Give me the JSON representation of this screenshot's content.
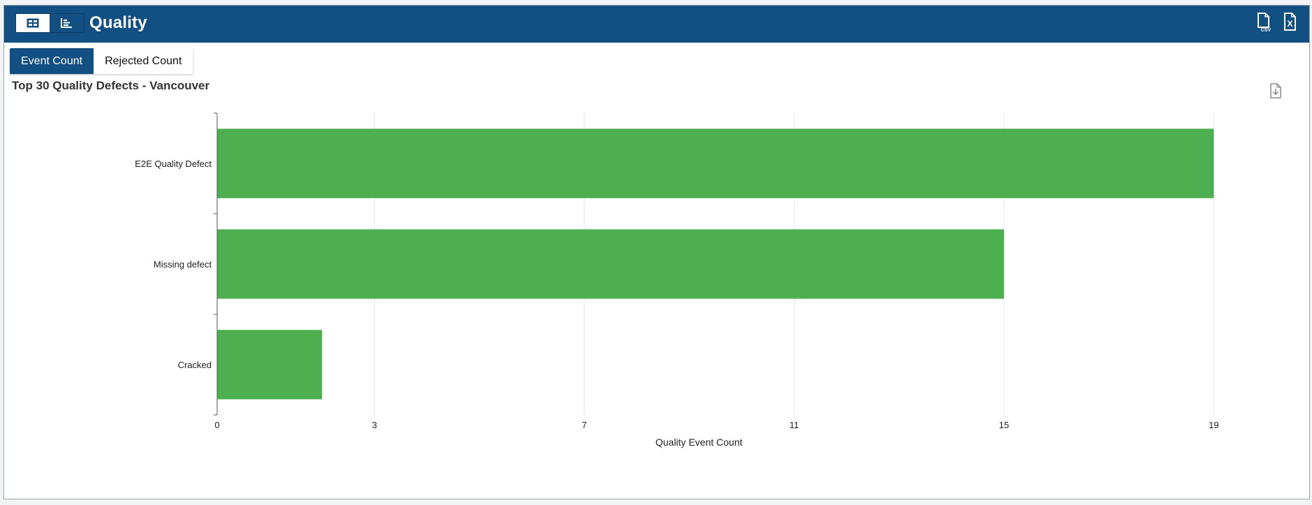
{
  "header": {
    "title": "Quality",
    "view_toggle": [
      {
        "name": "table-view",
        "icon": "table-icon",
        "active": true
      },
      {
        "name": "chart-view",
        "icon": "bar-chart-icon",
        "active": false
      }
    ],
    "actions": [
      {
        "icon": "csv-export-icon",
        "label": "CSV"
      },
      {
        "icon": "excel-export-icon",
        "label": "X"
      }
    ]
  },
  "tabs": [
    {
      "label": "Event Count",
      "active": true
    },
    {
      "label": "Rejected Count",
      "active": false
    }
  ],
  "colors": {
    "header": "#124f82",
    "bar": "#4caf50",
    "grid": "#e3e6ee",
    "axis": "#555555"
  },
  "chart_data": {
    "type": "bar",
    "orientation": "horizontal",
    "title": "Top 30 Quality Defects - Vancouver",
    "categories": [
      "E2E Quality Defect",
      "Missing defect",
      "Cracked"
    ],
    "values": [
      19,
      15,
      2
    ],
    "xlabel": "Quality Event Count",
    "ylabel": "",
    "xlim": [
      0,
      20.3
    ],
    "xticks": [
      0,
      3,
      7,
      11,
      15,
      19
    ],
    "grid": true,
    "legend": "none"
  }
}
